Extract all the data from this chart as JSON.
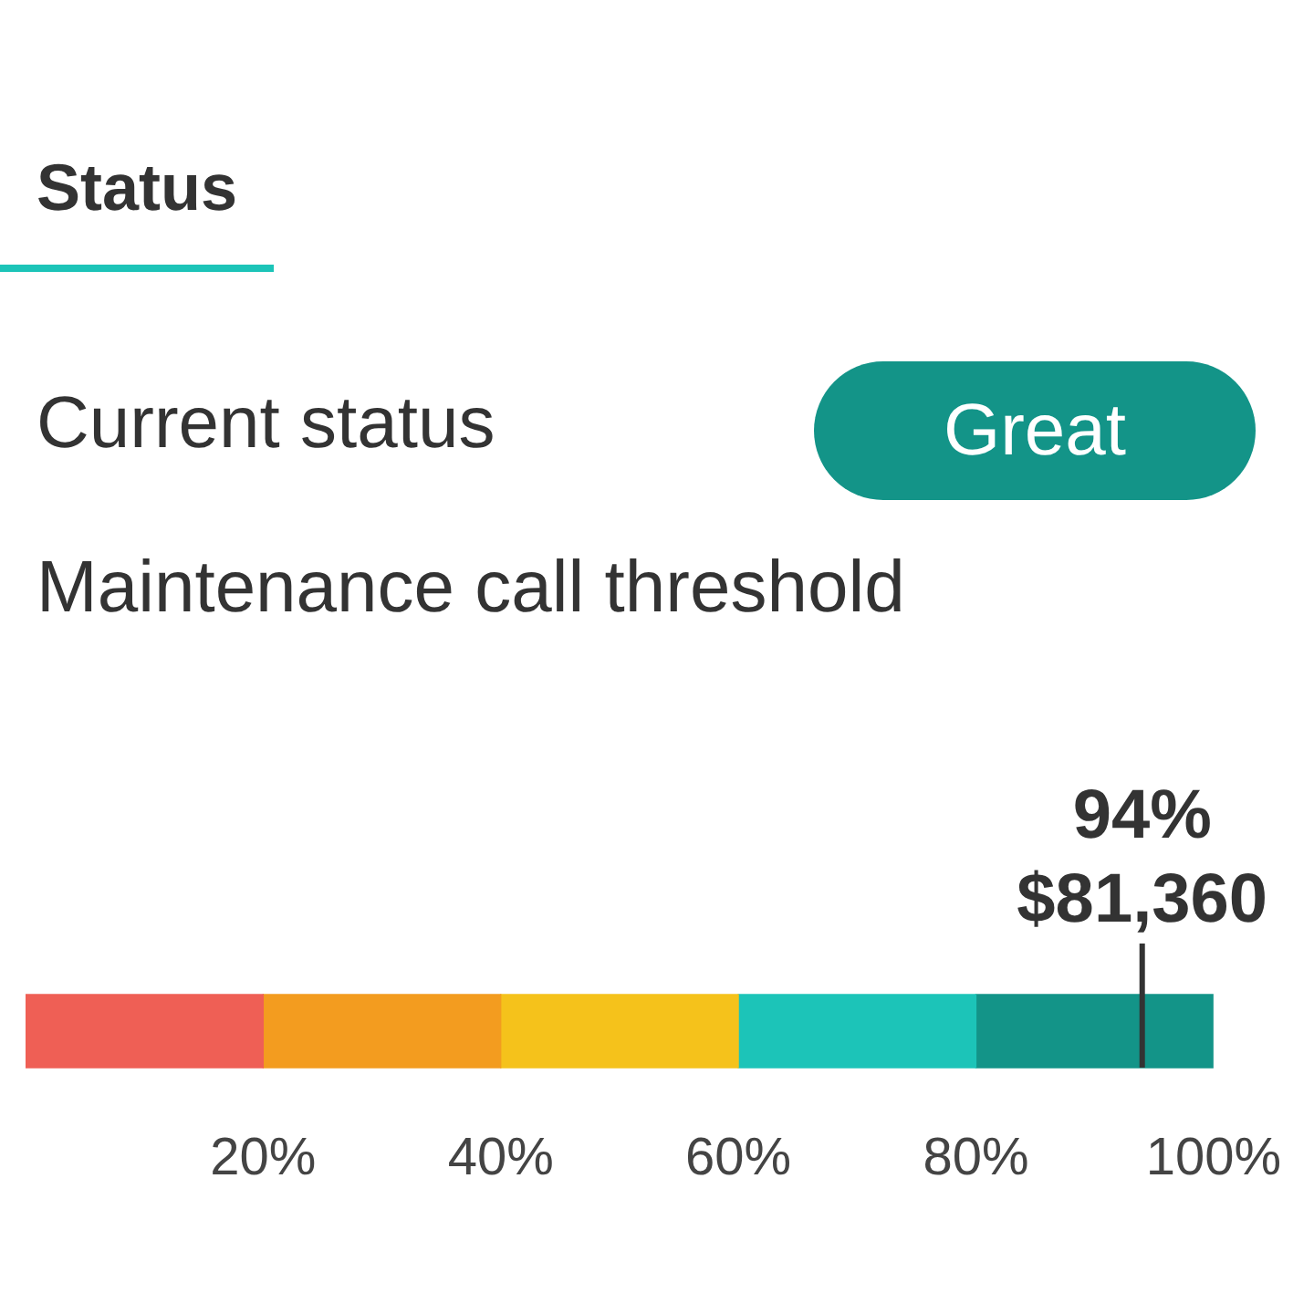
{
  "chart_data": {
    "type": "bar",
    "orientation": "horizontal",
    "stacked": true,
    "title": "Status",
    "annotations": [
      "Current status",
      "Great",
      "Maintenance call threshold",
      "$81,360"
    ],
    "categories": [
      null
    ],
    "series": [
      {
        "color": "#ef5f55",
        "values": [
          20
        ]
      },
      {
        "color": "#f39c1f",
        "values": [
          20
        ]
      },
      {
        "color": "#f5c21b",
        "values": [
          20
        ]
      },
      {
        "color": "#1cc4b8",
        "values": [
          20
        ]
      },
      {
        "color": "#139488",
        "values": [
          20
        ]
      }
    ],
    "xlim": [
      0,
      100
    ],
    "xticks": [
      {
        "value": 20,
        "label": "20%"
      },
      {
        "value": 40,
        "label": "40%"
      },
      {
        "value": 60,
        "label": "60%"
      },
      {
        "value": 80,
        "label": "80%"
      },
      {
        "value": 100,
        "label": "100%"
      }
    ],
    "ref_lines": [
      {
        "axis": "x",
        "value": 94,
        "label": "94%",
        "color": "#333333"
      }
    ],
    "grid": false,
    "legend": false
  }
}
